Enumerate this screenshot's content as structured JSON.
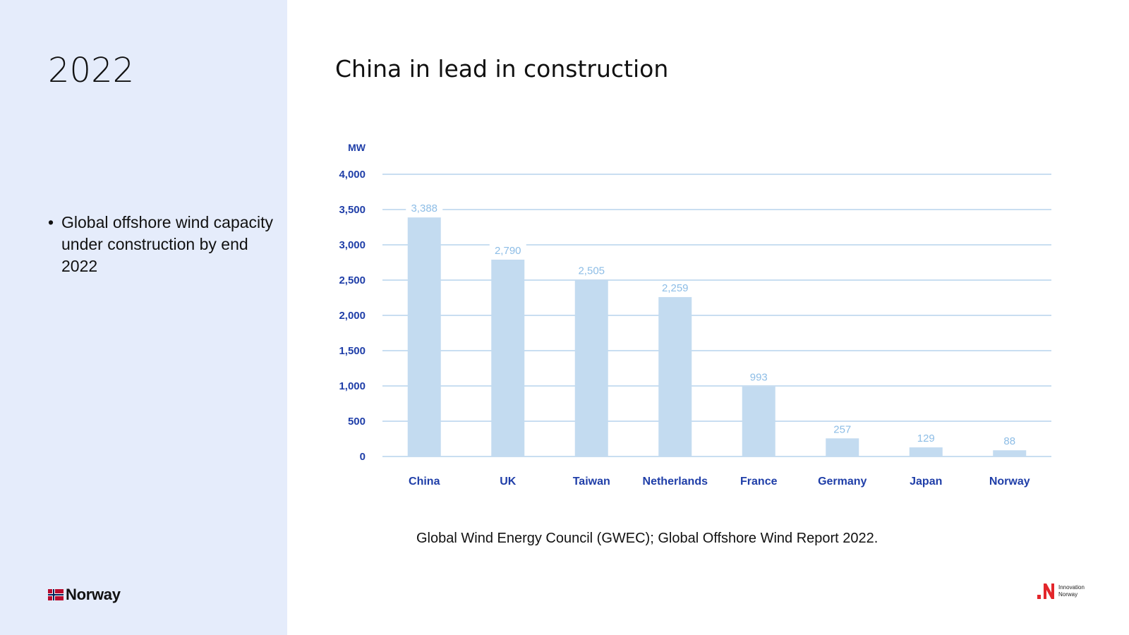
{
  "sidebar": {
    "year": "2022",
    "bullets": [
      "Global offshore wind capacity under construction by end 2022"
    ],
    "brand": "Norway"
  },
  "main": {
    "title": "China in lead in construction",
    "source": "Global Wind Energy Council (GWEC); Global Offshore Wind Report 2022."
  },
  "logo": {
    "line1": "Innovation",
    "line2": "Norway"
  },
  "colors": {
    "bar": "#c3dbf0",
    "axis_text": "#1f3ea8",
    "value_label": "#8dbde6",
    "grid": "#c9def1",
    "sidebar_bg": "#e5ecfb",
    "logo_red": "#e3262b"
  },
  "chart_data": {
    "type": "bar",
    "title": "China in lead in construction",
    "ylabel": "MW",
    "xlabel": "",
    "categories": [
      "China",
      "UK",
      "Taiwan",
      "Netherlands",
      "France",
      "Germany",
      "Japan",
      "Norway"
    ],
    "values": [
      3388,
      2790,
      2505,
      2259,
      993,
      257,
      129,
      88
    ],
    "value_labels": [
      "3,388",
      "2,790",
      "2,505",
      "2,259",
      "993",
      "257",
      "129",
      "88"
    ],
    "ylim": [
      0,
      4000
    ],
    "yticks": [
      0,
      500,
      1000,
      1500,
      2000,
      2500,
      3000,
      3500,
      4000
    ],
    "ytick_labels": [
      "0",
      "500",
      "1,000",
      "1,500",
      "2,000",
      "2,500",
      "3,000",
      "3,500",
      "4,000"
    ],
    "grid": true
  }
}
